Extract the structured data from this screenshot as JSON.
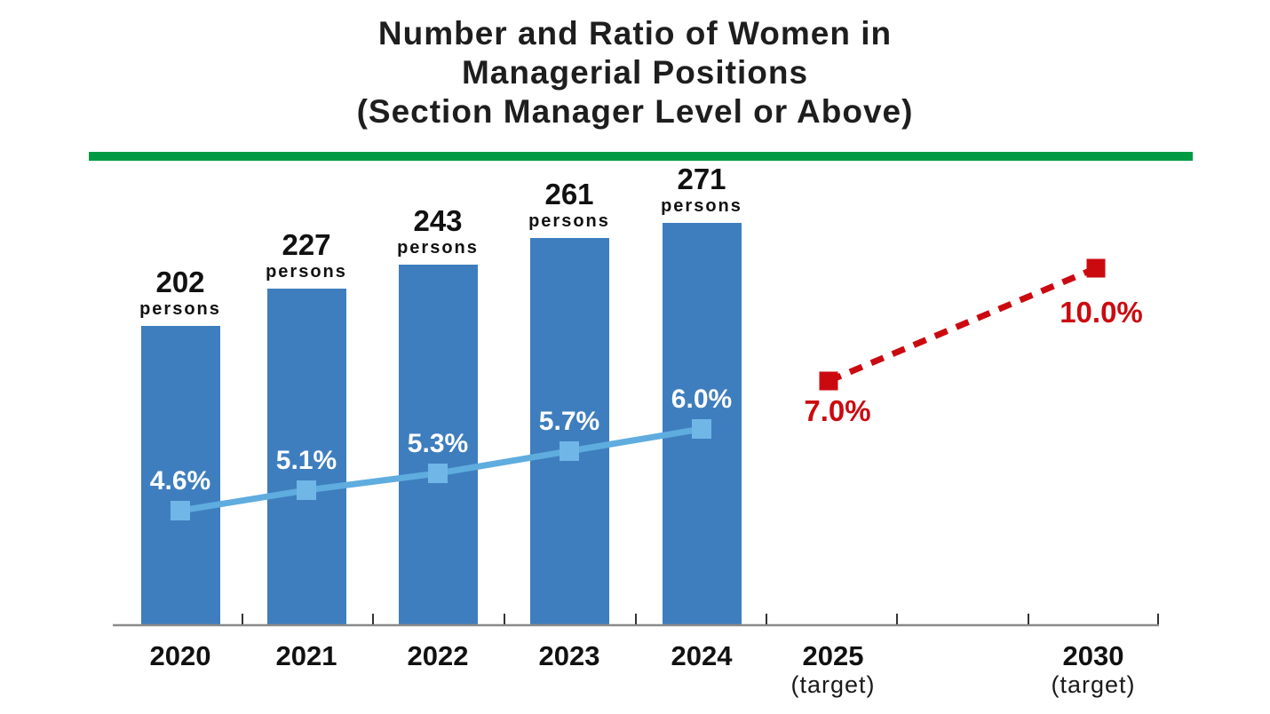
{
  "title": {
    "line1": "Number and Ratio of Women in",
    "line2": "Managerial Positions",
    "line3": "(Section Manager Level or Above)"
  },
  "colors": {
    "bar_blue": "#3E7EBE",
    "line_blue": "#5FACDF",
    "marker_blue": "#70B6E7",
    "target_red": "#CB0A10",
    "divider_green": "#009A44",
    "axis_gray": "#8A8A8A",
    "tick_dark": "#333333",
    "title_text": "#1E1E1E"
  },
  "labels": {
    "persons_suffix": "persons",
    "target_suffix": "(target)"
  },
  "chart_data": {
    "type": "bar",
    "title": "Number and Ratio of Women in Managerial Positions (Section Manager Level or Above)",
    "categories": [
      {
        "label": "2020",
        "sublabel": ""
      },
      {
        "label": "2021",
        "sublabel": ""
      },
      {
        "label": "2022",
        "sublabel": ""
      },
      {
        "label": "2023",
        "sublabel": ""
      },
      {
        "label": "2024",
        "sublabel": ""
      },
      {
        "label": "2025",
        "sublabel": "(target)"
      },
      {
        "label": "2030",
        "sublabel": "(target)"
      }
    ],
    "series": [
      {
        "name": "Number of women in managerial positions",
        "type": "bar",
        "unit": "persons",
        "values": [
          202,
          227,
          243,
          261,
          271,
          null,
          null
        ]
      },
      {
        "name": "Ratio of women in managerial positions (actual)",
        "type": "line",
        "marker": "square",
        "unit": "%",
        "values": [
          4.6,
          5.1,
          5.3,
          5.7,
          6.0,
          null,
          null
        ]
      },
      {
        "name": "Ratio of women in managerial positions (target)",
        "type": "line",
        "style": "dashed",
        "marker": "square",
        "unit": "%",
        "values": [
          null,
          null,
          null,
          null,
          null,
          7.0,
          10.0
        ]
      }
    ],
    "axes": {
      "x_axis_visible": true,
      "y_axis_visible": false,
      "gridlines": false,
      "persons_axis_min": 0
    },
    "legend": "none"
  }
}
